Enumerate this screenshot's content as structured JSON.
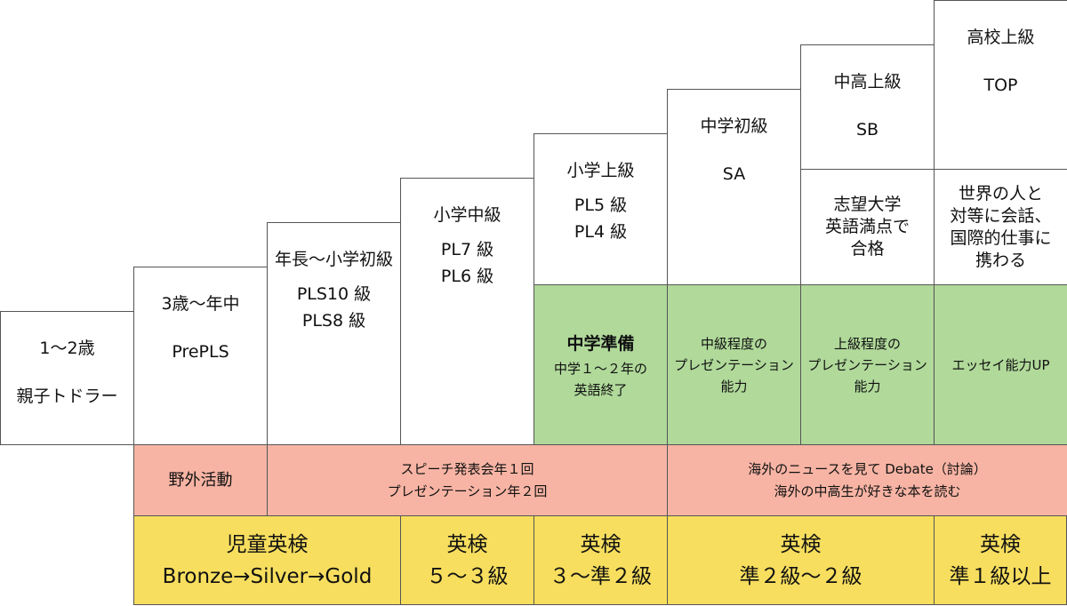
{
  "steps": [
    {
      "level": "1～2歳",
      "course": [
        "親子トドラー"
      ]
    },
    {
      "level": "3歳～年中",
      "course": [
        "PrePLS"
      ]
    },
    {
      "level": "年長～小学初級",
      "course": [
        "PLS10 級",
        "PLS8 級"
      ]
    },
    {
      "level": "小学中級",
      "course": [
        "PL7 級",
        "PL6 級"
      ]
    },
    {
      "level": "小学上級",
      "course": [
        "PL5 級",
        "PL4 級"
      ]
    },
    {
      "level": "中学初級",
      "course": [
        "SA"
      ]
    },
    {
      "level": "中高上級",
      "course": [
        "SB"
      ]
    },
    {
      "level": "高校上級",
      "course": [
        "TOP"
      ]
    }
  ],
  "targets": [
    [
      "志望大学",
      "英語満点で",
      "合格"
    ],
    [
      "世界の人と",
      "対等に会話、",
      "国際的仕事に",
      "携わる"
    ]
  ],
  "skills": [
    {
      "title": "中学準備",
      "lines": [
        "中学１～２年の",
        "英語終了"
      ]
    },
    {
      "lines": [
        "中級程度の",
        "プレゼンテーション",
        "能力"
      ]
    },
    {
      "lines": [
        "上級程度の",
        "プレゼンテーション",
        "能力"
      ]
    },
    {
      "lines": [
        "エッセイ能力UP"
      ]
    }
  ],
  "activities": [
    [
      "野外活動"
    ],
    [
      "スピーチ発表会年１回",
      "プレゼンテーション年２回"
    ],
    [
      "海外のニュースを見て Debate（討論）",
      "海外の中高生が好きな本を読む"
    ]
  ],
  "eiken": [
    [
      "児童英検",
      "Bronze→Silver→Gold"
    ],
    [
      "英検",
      "５～３級"
    ],
    [
      "英検",
      "３～準２級"
    ],
    [
      "英検",
      "準２級～２級"
    ],
    [
      "英検",
      "準１級以上"
    ]
  ]
}
